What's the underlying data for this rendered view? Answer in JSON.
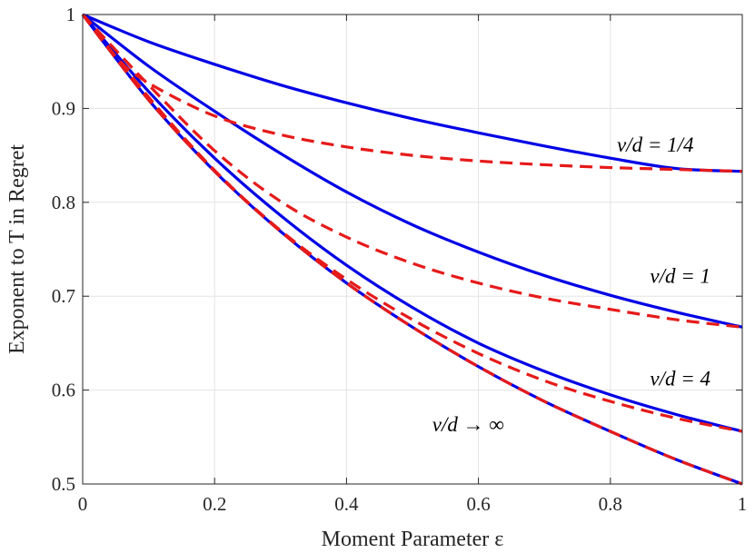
{
  "chart_data": {
    "type": "line",
    "xlabel": "Moment Parameter ε",
    "ylabel": "Exponent to T in Regret",
    "xlim": [
      0,
      1
    ],
    "ylim": [
      0.5,
      1
    ],
    "x_ticks": [
      "0",
      "0.2",
      "0.4",
      "0.6",
      "0.8",
      "1"
    ],
    "y_ticks": [
      "0.5",
      "0.6",
      "0.7",
      "0.8",
      "0.9",
      "1"
    ],
    "grid": true,
    "colors": {
      "upper": "#0000e6",
      "lower": "#e61a1a",
      "frame": "#262626"
    },
    "series": [
      {
        "group": "ν/d = 1/4",
        "style": "solid",
        "x": [
          0,
          0.1,
          0.2,
          0.3,
          0.4,
          0.5,
          0.6,
          0.7,
          0.8,
          0.9,
          1
        ],
        "y": [
          1,
          0.971,
          0.947,
          0.925,
          0.906,
          0.889,
          0.874,
          0.86,
          0.847,
          0.836,
          0.833
        ]
      },
      {
        "group": "ν/d = 1/4",
        "style": "dashed",
        "x": [
          0,
          0.05,
          0.1,
          0.2,
          0.3,
          0.4,
          0.5,
          0.6,
          0.7,
          0.8,
          0.9,
          1
        ],
        "y": [
          1,
          0.955,
          0.927,
          0.892,
          0.872,
          0.859,
          0.85,
          0.844,
          0.84,
          0.837,
          0.835,
          0.833
        ]
      },
      {
        "group": "ν/d = 1",
        "style": "solid",
        "x": [
          0,
          0.1,
          0.2,
          0.3,
          0.4,
          0.5,
          0.6,
          0.7,
          0.8,
          0.9,
          1
        ],
        "y": [
          1,
          0.945,
          0.897,
          0.852,
          0.811,
          0.776,
          0.747,
          0.722,
          0.701,
          0.683,
          0.667
        ]
      },
      {
        "group": "ν/d = 1",
        "style": "dashed",
        "x": [
          0,
          0.1,
          0.2,
          0.3,
          0.4,
          0.5,
          0.6,
          0.7,
          0.8,
          0.9,
          1
        ],
        "y": [
          1,
          0.925,
          0.855,
          0.801,
          0.763,
          0.735,
          0.714,
          0.698,
          0.686,
          0.675,
          0.667
        ]
      },
      {
        "group": "ν/d = 4",
        "style": "solid",
        "x": [
          0,
          0.1,
          0.2,
          0.3,
          0.4,
          0.5,
          0.6,
          0.7,
          0.8,
          0.9,
          1
        ],
        "y": [
          1,
          0.918,
          0.847,
          0.786,
          0.733,
          0.688,
          0.65,
          0.62,
          0.595,
          0.574,
          0.556
        ]
      },
      {
        "group": "ν/d = 4",
        "style": "dashed",
        "x": [
          0,
          0.1,
          0.2,
          0.3,
          0.4,
          0.5,
          0.6,
          0.7,
          0.8,
          0.9,
          1
        ],
        "y": [
          1,
          0.912,
          0.834,
          0.77,
          0.718,
          0.675,
          0.639,
          0.61,
          0.588,
          0.57,
          0.556
        ]
      },
      {
        "group": "ν/d → ∞",
        "style": "solid",
        "x": [
          0,
          0.1,
          0.2,
          0.3,
          0.4,
          0.5,
          0.6,
          0.7,
          0.8,
          0.9,
          1
        ],
        "y": [
          1,
          0.909,
          0.833,
          0.769,
          0.714,
          0.667,
          0.625,
          0.588,
          0.556,
          0.526,
          0.5
        ]
      },
      {
        "group": "ν/d → ∞",
        "style": "dashed",
        "x": [
          0,
          0.1,
          0.2,
          0.3,
          0.4,
          0.5,
          0.6,
          0.7,
          0.8,
          0.9,
          1
        ],
        "y": [
          1,
          0.909,
          0.833,
          0.769,
          0.714,
          0.667,
          0.625,
          0.588,
          0.556,
          0.526,
          0.5
        ]
      }
    ],
    "annotations": [
      {
        "text": "ν/d = 1/4",
        "x": 0.81,
        "y": 0.854
      },
      {
        "text": "ν/d = 1",
        "x": 0.86,
        "y": 0.714
      },
      {
        "text": "ν/d = 4",
        "x": 0.86,
        "y": 0.605
      },
      {
        "text": "ν/d → ∞",
        "x": 0.53,
        "y": 0.556
      }
    ]
  }
}
